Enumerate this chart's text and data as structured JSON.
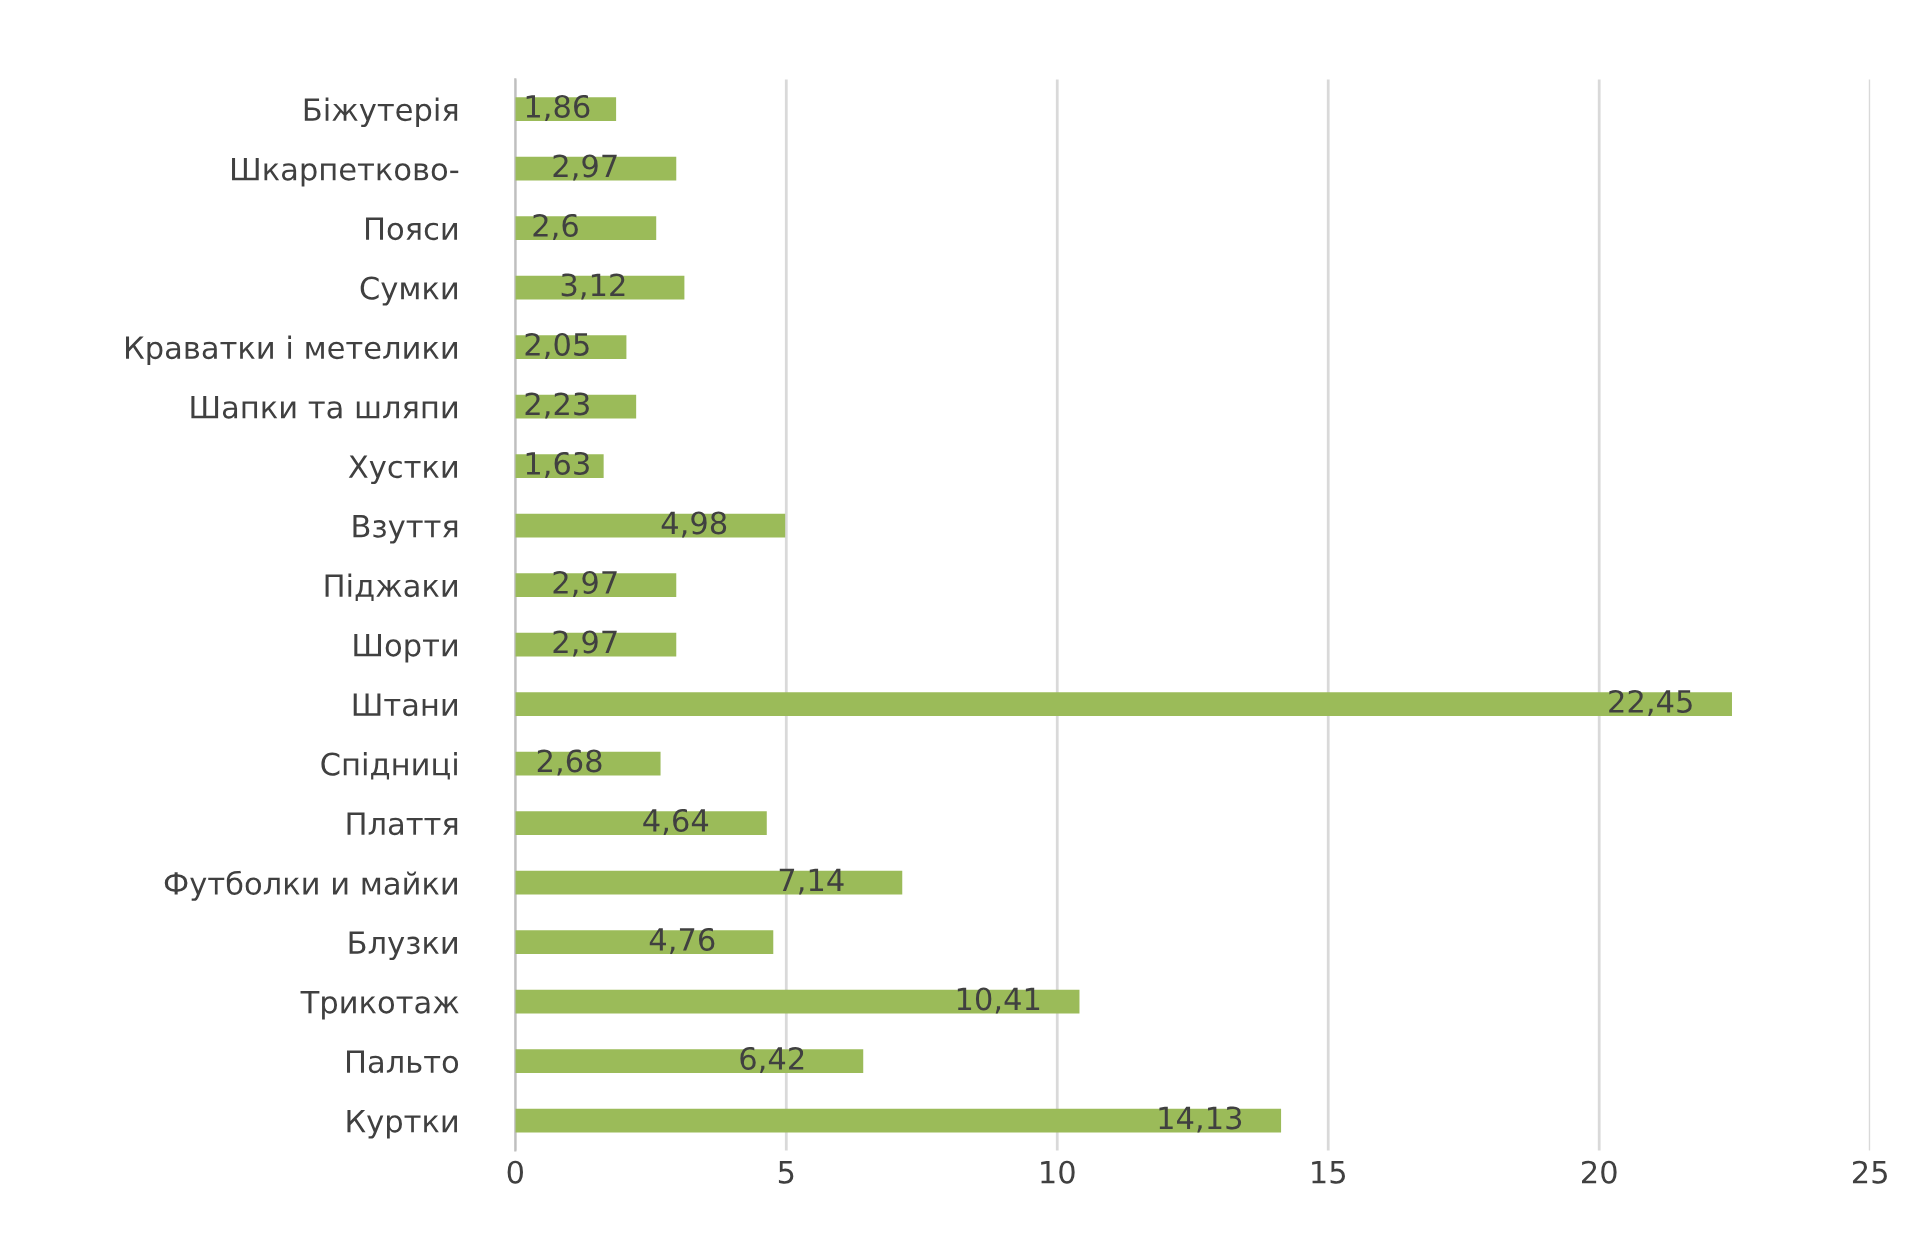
{
  "chart_data": {
    "type": "bar",
    "orientation": "horizontal",
    "categories": [
      "Біжутерія",
      "Шкарпетково-",
      "Пояси",
      "Сумки",
      "Краватки і метелики",
      "Шапки та шляпи",
      "Хустки",
      "Взуття",
      "Піджаки",
      "Шорти",
      "Штани",
      "Спідниці",
      "Плаття",
      "Футболки и майки",
      "Блузки",
      "Трикотаж",
      "Пальто",
      "Куртки"
    ],
    "values": [
      1.86,
      2.97,
      2.6,
      3.12,
      2.05,
      2.23,
      1.63,
      4.98,
      2.97,
      2.97,
      22.45,
      2.68,
      4.64,
      7.14,
      4.76,
      10.41,
      6.42,
      14.13
    ],
    "value_labels": [
      "1,86",
      "2,97",
      "2,6",
      "3,12",
      "2,05",
      "2,23",
      "1,63",
      "4,98",
      "2,97",
      "2,97",
      "22,45",
      "2,68",
      "4,64",
      "7,14",
      "4,76",
      "10,41",
      "6,42",
      "14,13"
    ],
    "color": "#9bbb59",
    "xlim": [
      0,
      25
    ],
    "xticks": [
      0,
      5,
      10,
      15,
      20,
      25
    ],
    "grid": "x"
  }
}
